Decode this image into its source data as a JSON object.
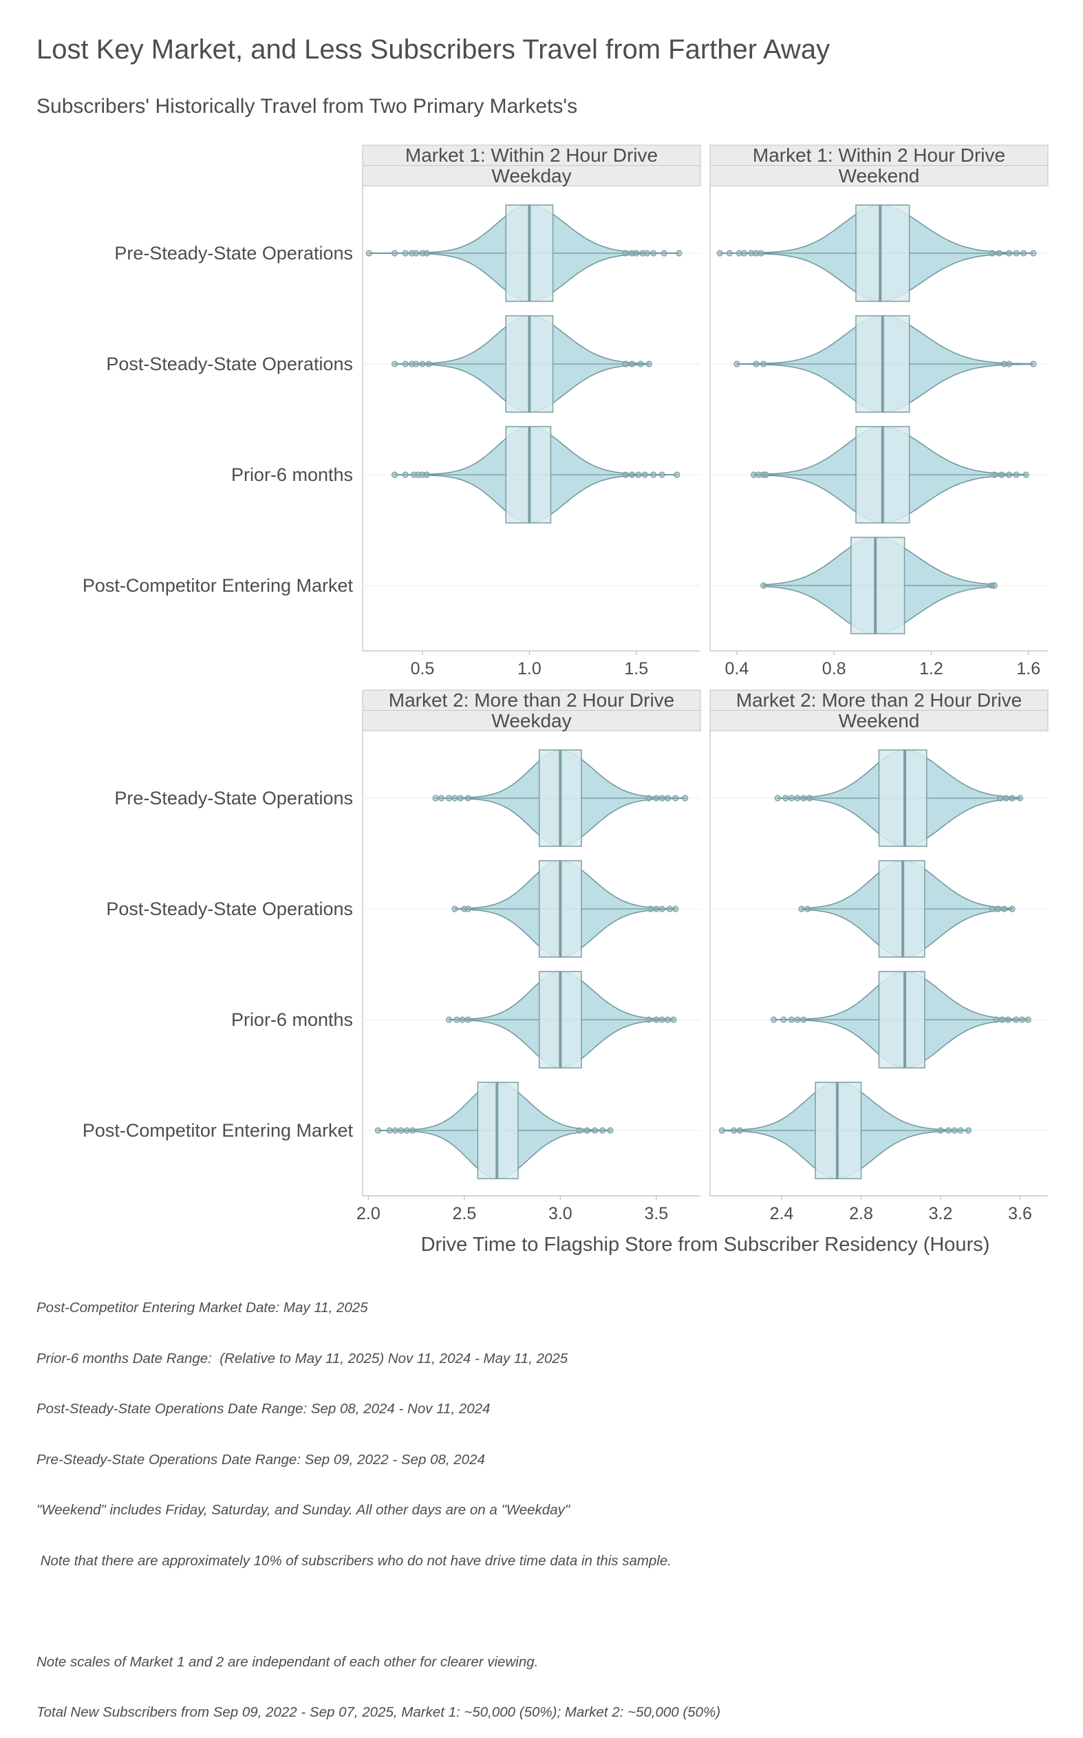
{
  "title": "Lost Key Market, and Less Subscribers Travel from Farther Away",
  "subtitle": "Subscribers' Historically Travel from Two Primary Markets's",
  "x_axis_label": "Drive Time to Flagship Store from Subscriber Residency (Hours)",
  "colors": {
    "violin_fill": "#bcdee4",
    "violin_stroke": "#6e969c",
    "box_fill": "#d8ebef",
    "box_stroke": "#7b9ea3",
    "strip_bg": "#ebebeb",
    "strip_border": "#c7c7c7"
  },
  "categories": [
    "Pre-Steady-State Operations",
    "Post-Steady-State Operations",
    "Prior-6 months",
    "Post-Competitor Entering Market"
  ],
  "chart_data": [
    {
      "type": "violin",
      "strip": [
        "Market 1: Within 2 Hour Drive",
        "Weekday"
      ],
      "xticks": [
        0.5,
        1.0,
        1.5
      ],
      "xtick_labels": [
        "0.5",
        "1.0",
        "1.5"
      ],
      "xlim": [
        0.22,
        1.8
      ],
      "groups": [
        {
          "category": "Pre-Steady-State Operations",
          "min": 0.25,
          "q1": 0.89,
          "median": 1.0,
          "q3": 1.11,
          "max": 1.7,
          "outliers": [
            0.25,
            0.37,
            0.42,
            0.45,
            0.47,
            0.5,
            0.52,
            1.45,
            1.48,
            1.5,
            1.53,
            1.55,
            1.58,
            1.63,
            1.7
          ]
        },
        {
          "category": "Post-Steady-State Operations",
          "min": 0.37,
          "q1": 0.89,
          "median": 1.0,
          "q3": 1.11,
          "max": 1.56,
          "outliers": [
            0.37,
            0.42,
            0.45,
            0.47,
            0.5,
            0.53,
            1.45,
            1.48,
            1.52,
            1.56
          ]
        },
        {
          "category": "Prior-6 months",
          "min": 0.37,
          "q1": 0.89,
          "median": 1.0,
          "q3": 1.1,
          "max": 1.69,
          "outliers": [
            0.37,
            0.42,
            0.46,
            0.48,
            0.5,
            0.52,
            1.45,
            1.48,
            1.51,
            1.54,
            1.58,
            1.62,
            1.69
          ]
        }
      ]
    },
    {
      "type": "violin",
      "strip": [
        "Market 1: Within 2 Hour Drive",
        "Weekend"
      ],
      "xticks": [
        0.4,
        0.8,
        1.2,
        1.6
      ],
      "xtick_labels": [
        "0.4",
        "0.8",
        "1.2",
        "1.6"
      ],
      "xlim": [
        0.29,
        1.68
      ],
      "groups": [
        {
          "category": "Pre-Steady-State Operations",
          "min": 0.33,
          "q1": 0.89,
          "median": 0.99,
          "q3": 1.11,
          "max": 1.62,
          "outliers": [
            0.33,
            0.37,
            0.41,
            0.43,
            0.46,
            0.48,
            0.5,
            1.45,
            1.48,
            1.52,
            1.55,
            1.58,
            1.62
          ]
        },
        {
          "category": "Post-Steady-State Operations",
          "min": 0.4,
          "q1": 0.89,
          "median": 1.0,
          "q3": 1.11,
          "max": 1.62,
          "outliers": [
            0.4,
            0.48,
            0.51,
            1.5,
            1.52,
            1.62
          ]
        },
        {
          "category": "Prior-6 months",
          "min": 0.47,
          "q1": 0.89,
          "median": 1.0,
          "q3": 1.11,
          "max": 1.59,
          "outliers": [
            0.47,
            0.49,
            0.51,
            0.52,
            1.46,
            1.49,
            1.52,
            1.55,
            1.59
          ]
        },
        {
          "category": "Post-Competitor Entering Market",
          "min": 0.51,
          "q1": 0.87,
          "median": 0.97,
          "q3": 1.09,
          "max": 1.46,
          "outliers": [
            0.51,
            1.45,
            1.46
          ]
        }
      ]
    },
    {
      "type": "violin",
      "strip": [
        "Market 2: More than 2 Hour Drive",
        "Weekday"
      ],
      "xticks": [
        2.0,
        2.5,
        3.0,
        3.5
      ],
      "xtick_labels": [
        "2.0",
        "2.5",
        "3.0",
        "3.5"
      ],
      "xlim": [
        1.97,
        3.73
      ],
      "groups": [
        {
          "category": "Pre-Steady-State Operations",
          "min": 2.35,
          "q1": 2.89,
          "median": 3.0,
          "q3": 3.11,
          "max": 3.65,
          "outliers": [
            2.35,
            2.38,
            2.42,
            2.45,
            2.48,
            2.52,
            3.46,
            3.5,
            3.53,
            3.56,
            3.6,
            3.65
          ]
        },
        {
          "category": "Post-Steady-State Operations",
          "min": 2.45,
          "q1": 2.89,
          "median": 3.0,
          "q3": 3.11,
          "max": 3.6,
          "outliers": [
            2.45,
            2.5,
            2.52,
            3.47,
            3.5,
            3.53,
            3.57,
            3.6
          ]
        },
        {
          "category": "Prior-6 months",
          "min": 2.42,
          "q1": 2.89,
          "median": 3.0,
          "q3": 3.11,
          "max": 3.59,
          "outliers": [
            2.42,
            2.46,
            2.49,
            2.52,
            3.46,
            3.5,
            3.53,
            3.56,
            3.59
          ]
        },
        {
          "category": "Post-Competitor Entering Market",
          "min": 2.05,
          "q1": 2.57,
          "median": 2.67,
          "q3": 2.78,
          "max": 3.26,
          "outliers": [
            2.05,
            2.11,
            2.14,
            2.17,
            2.2,
            2.23,
            3.1,
            3.14,
            3.18,
            3.22,
            3.26
          ]
        }
      ]
    },
    {
      "type": "violin",
      "strip": [
        "Market 2: More than 2 Hour Drive",
        "Weekend"
      ],
      "xticks": [
        2.4,
        2.8,
        3.2,
        3.6
      ],
      "xtick_labels": [
        "2.4",
        "2.8",
        "3.2",
        "3.6"
      ],
      "xlim": [
        2.04,
        3.74
      ],
      "groups": [
        {
          "category": "Pre-Steady-State Operations",
          "min": 2.38,
          "q1": 2.89,
          "median": 3.02,
          "q3": 3.13,
          "max": 3.6,
          "outliers": [
            2.38,
            2.42,
            2.45,
            2.48,
            2.51,
            2.54,
            3.5,
            3.53,
            3.56,
            3.6
          ]
        },
        {
          "category": "Post-Steady-State Operations",
          "min": 2.5,
          "q1": 2.89,
          "median": 3.01,
          "q3": 3.12,
          "max": 3.56,
          "outliers": [
            2.5,
            2.53,
            3.46,
            3.49,
            3.52,
            3.56
          ]
        },
        {
          "category": "Prior-6 months",
          "min": 2.36,
          "q1": 2.89,
          "median": 3.02,
          "q3": 3.12,
          "max": 3.64,
          "outliers": [
            2.36,
            2.41,
            2.45,
            2.48,
            2.51,
            3.48,
            3.51,
            3.54,
            3.58,
            3.61,
            3.64
          ]
        },
        {
          "category": "Post-Competitor Entering Market",
          "min": 2.1,
          "q1": 2.57,
          "median": 2.68,
          "q3": 2.8,
          "max": 3.34,
          "outliers": [
            2.1,
            2.16,
            2.19,
            3.2,
            3.24,
            3.27,
            3.3,
            3.34
          ]
        }
      ]
    }
  ],
  "notes": [
    "Post-Competitor Entering Market Date: May 11, 2025",
    "Prior-6 months Date Range:  (Relative to May 11, 2025) Nov 11, 2024 - May 11, 2025",
    "Post-Steady-State Operations Date Range: Sep 08, 2024 - Nov 11, 2024",
    "Pre-Steady-State Operations Date Range: Sep 09, 2022 - Sep 08, 2024",
    "\"Weekend\" includes Friday, Saturday, and Sunday. All other days are on a \"Weekday\"",
    " Note that there are approximately 10% of subscribers who do not have drive time data in this sample.",
    "",
    "Note scales of Market 1 and 2 are independant of each other for clearer viewing.",
    "Total New Subscribers from Sep 09, 2022 - Sep 07, 2025, Market 1: ~50,000 (50%); Market 2: ~50,000 (50%)"
  ]
}
